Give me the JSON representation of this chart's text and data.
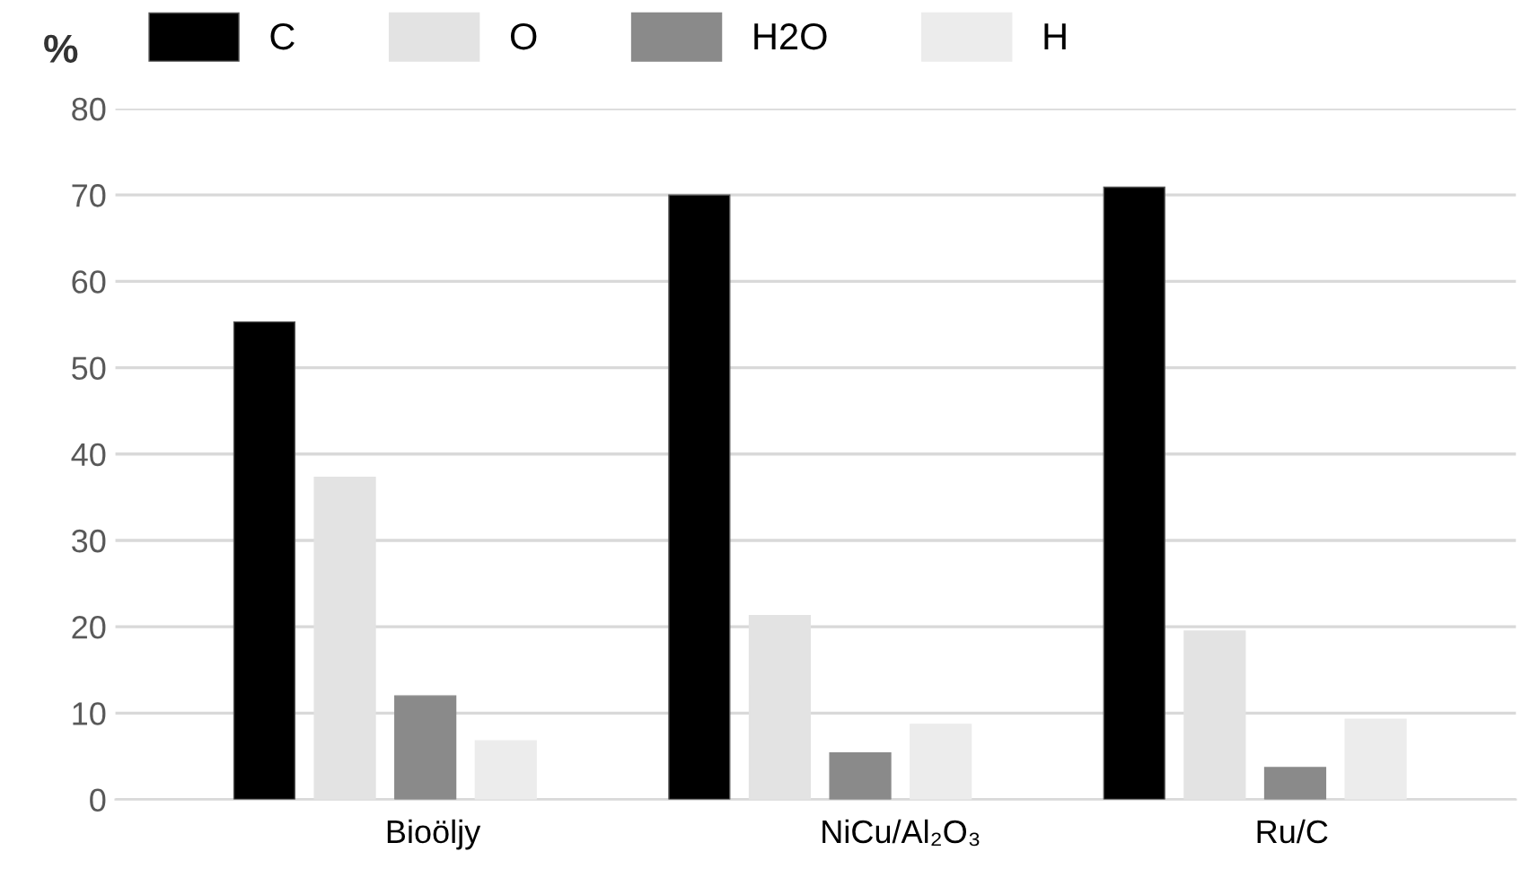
{
  "chart_data": {
    "type": "bar",
    "ylabel": "%",
    "categories": [
      "Bioöljy",
      "NiCu/Al₂O₃",
      "Ru/C"
    ],
    "series": [
      {
        "name": "C",
        "color": "#000000",
        "values": [
          55.3,
          70.0,
          70.9
        ]
      },
      {
        "name": "O",
        "color": "#e3e3e3",
        "values": [
          37.3,
          21.3,
          19.5
        ]
      },
      {
        "name": "H2O",
        "color": "#8a8a8a",
        "values": [
          12.0,
          5.4,
          3.7
        ]
      },
      {
        "name": "H",
        "color": "#ececec",
        "values": [
          6.8,
          8.7,
          9.3
        ]
      }
    ],
    "ylim": [
      0,
      80
    ],
    "yticks": [
      0,
      10,
      20,
      30,
      40,
      50,
      60,
      70,
      80
    ],
    "grid": "y",
    "legend": "top left"
  }
}
